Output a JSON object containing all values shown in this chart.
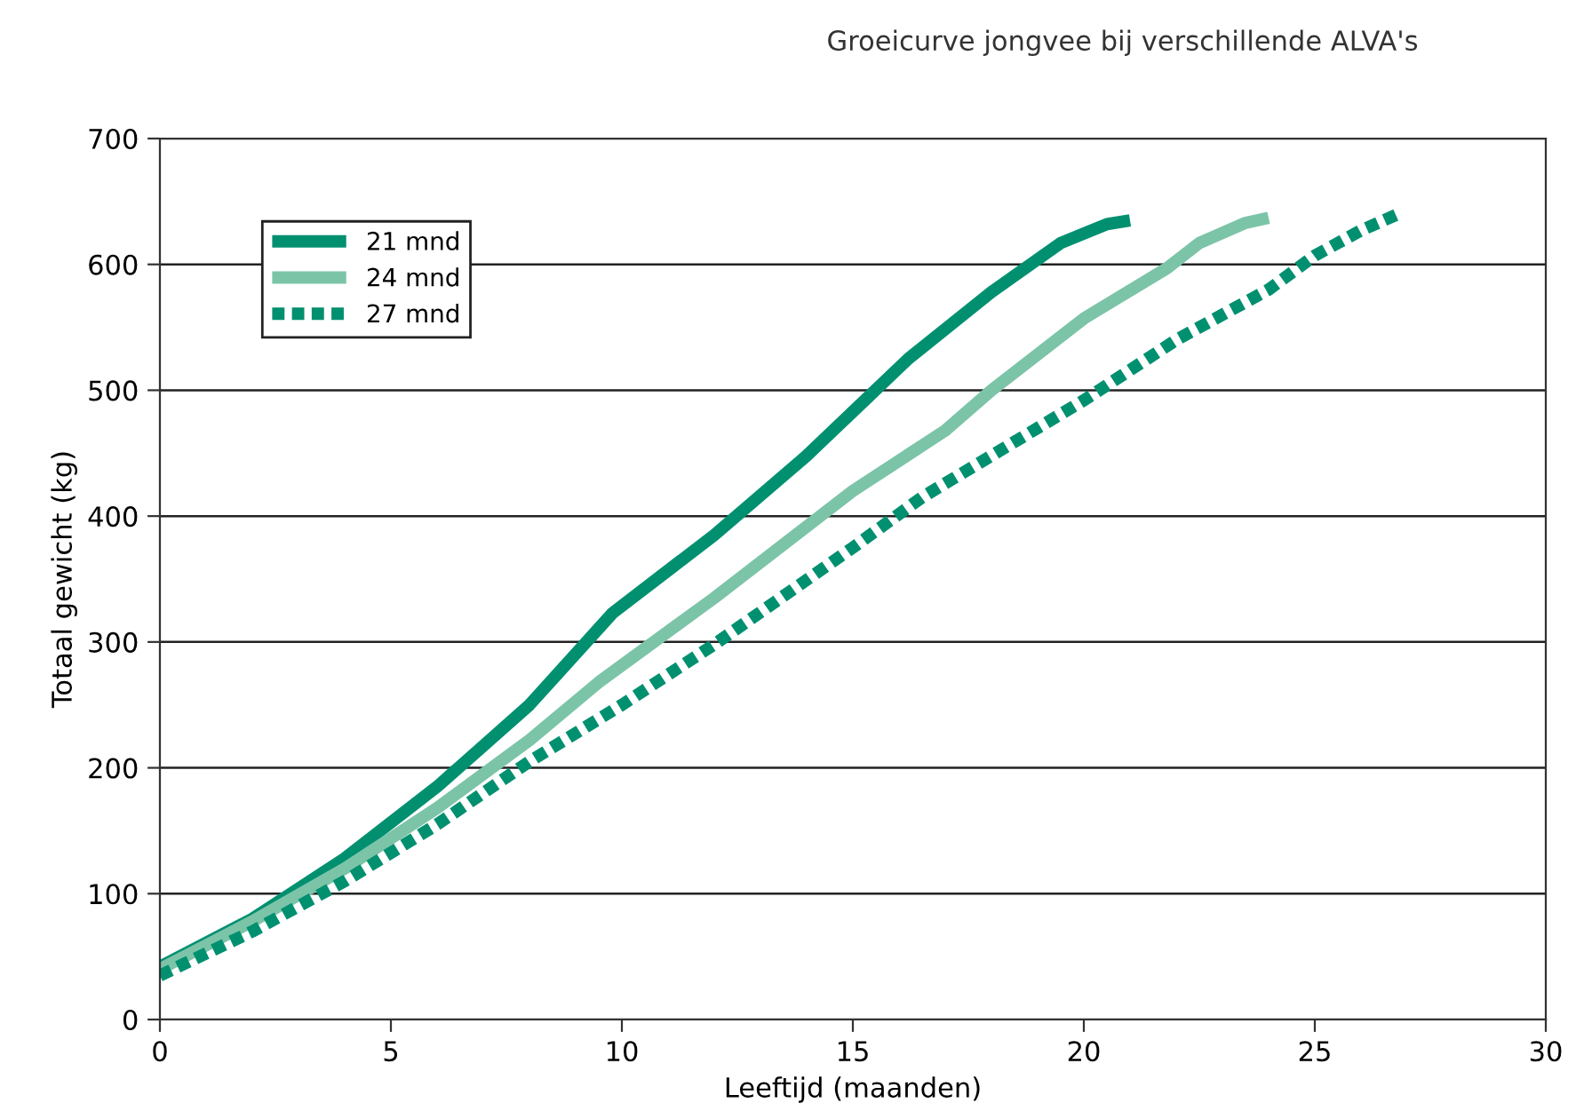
{
  "chart_data": {
    "type": "line",
    "title": "Groeicurve jongvee bij verschillende ALVA's",
    "xlabel": "Leeftijd (maanden)",
    "ylabel": "Totaal gewicht (kg)",
    "xlim": [
      0,
      30
    ],
    "xticks": [
      0,
      5,
      10,
      15,
      20,
      25,
      30
    ],
    "ylim": [
      0,
      700
    ],
    "yticks": [
      0,
      100,
      200,
      300,
      400,
      500,
      600,
      700
    ],
    "grid": "y",
    "legend": "top left",
    "series": [
      {
        "name": "21 mnd",
        "color": "#009070",
        "line_style": "solid",
        "x": [
          0,
          2,
          4,
          6,
          8,
          9.8,
          12,
          14,
          15.2,
          16.2,
          18,
          19.5,
          20.5,
          21
        ],
        "values": [
          42,
          80,
          128,
          185,
          250,
          323,
          385,
          448,
          490,
          525,
          578,
          617,
          632,
          635
        ]
      },
      {
        "name": "24 mnd",
        "color": "#7cc4a8",
        "line_style": "solid",
        "x": [
          0,
          2,
          4,
          6,
          8,
          9.5,
          12,
          15,
          17,
          18,
          20,
          21.8,
          22.5,
          23.5,
          24
        ],
        "values": [
          40,
          78,
          120,
          168,
          222,
          268,
          335,
          420,
          468,
          500,
          557,
          597,
          617,
          633,
          637
        ]
      },
      {
        "name": "27 mnd",
        "color": "#009070",
        "line_style": "dotted",
        "x": [
          0,
          2,
          4,
          6,
          8,
          10,
          12,
          15,
          16.5,
          18,
          20,
          22,
          24,
          25,
          26,
          26.8
        ],
        "values": [
          35,
          70,
          110,
          155,
          205,
          250,
          298,
          375,
          415,
          448,
          492,
          540,
          580,
          607,
          627,
          640
        ]
      }
    ]
  }
}
